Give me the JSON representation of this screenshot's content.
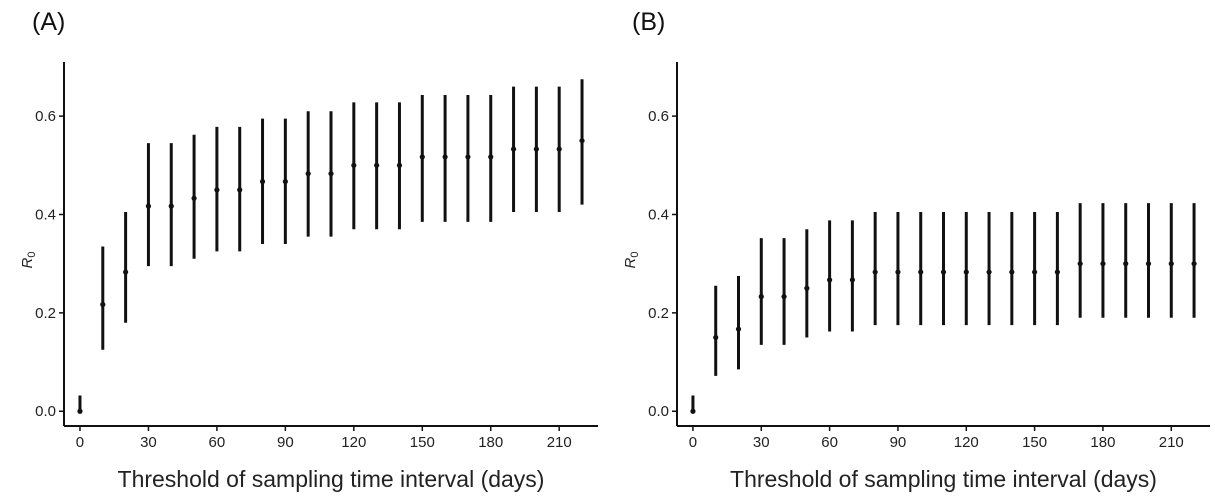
{
  "chart_data": [
    {
      "type": "scatter",
      "panel_label": "(A)",
      "xlabel": "Threshold of sampling time interval (days)",
      "ylabel": "R",
      "ylabel_sub": "0",
      "xlim": [
        -7,
        227
      ],
      "ylim": [
        -0.03,
        0.71
      ],
      "xticks": [
        0,
        30,
        60,
        90,
        120,
        150,
        180,
        210
      ],
      "xtick_labels": [
        "0",
        "30",
        "60",
        "90",
        "120",
        "150",
        "180",
        "210"
      ],
      "yticks": [
        0.0,
        0.2,
        0.4,
        0.6
      ],
      "ytick_labels": [
        "0.0",
        "0.2",
        "0.4",
        "0.6"
      ],
      "error_bars": true,
      "series": [
        {
          "x": [
            0,
            10,
            20,
            30,
            40,
            50,
            60,
            70,
            80,
            90,
            100,
            110,
            120,
            130,
            140,
            150,
            160,
            170,
            180,
            190,
            200,
            210,
            220
          ],
          "y": [
            0.0,
            0.217,
            0.283,
            0.417,
            0.417,
            0.433,
            0.45,
            0.45,
            0.467,
            0.467,
            0.483,
            0.483,
            0.5,
            0.5,
            0.5,
            0.517,
            0.517,
            0.517,
            0.517,
            0.533,
            0.533,
            0.533,
            0.55
          ],
          "lower": [
            0.0,
            0.125,
            0.18,
            0.295,
            0.295,
            0.31,
            0.325,
            0.325,
            0.34,
            0.34,
            0.355,
            0.355,
            0.37,
            0.37,
            0.37,
            0.385,
            0.385,
            0.385,
            0.385,
            0.405,
            0.405,
            0.405,
            0.42
          ],
          "upper": [
            0.032,
            0.335,
            0.405,
            0.545,
            0.545,
            0.562,
            0.578,
            0.578,
            0.595,
            0.595,
            0.61,
            0.61,
            0.628,
            0.628,
            0.628,
            0.643,
            0.643,
            0.643,
            0.643,
            0.66,
            0.66,
            0.66,
            0.675
          ]
        }
      ]
    },
    {
      "type": "scatter",
      "panel_label": "(B)",
      "xlabel": "Threshold of sampling time interval (days)",
      "ylabel": "R",
      "ylabel_sub": "0",
      "xlim": [
        -7,
        227
      ],
      "ylim": [
        -0.03,
        0.71
      ],
      "xticks": [
        0,
        30,
        60,
        90,
        120,
        150,
        180,
        210
      ],
      "xtick_labels": [
        "0",
        "30",
        "60",
        "90",
        "120",
        "150",
        "180",
        "210"
      ],
      "yticks": [
        0.0,
        0.2,
        0.4,
        0.6
      ],
      "ytick_labels": [
        "0.0",
        "0.2",
        "0.4",
        "0.6"
      ],
      "error_bars": true,
      "series": [
        {
          "x": [
            0,
            10,
            20,
            30,
            40,
            50,
            60,
            70,
            80,
            90,
            100,
            110,
            120,
            130,
            140,
            150,
            160,
            170,
            180,
            190,
            200,
            210,
            220
          ],
          "y": [
            0.0,
            0.15,
            0.167,
            0.233,
            0.233,
            0.25,
            0.267,
            0.267,
            0.283,
            0.283,
            0.283,
            0.283,
            0.283,
            0.283,
            0.283,
            0.283,
            0.283,
            0.3,
            0.3,
            0.3,
            0.3,
            0.3,
            0.3
          ],
          "lower": [
            0.0,
            0.072,
            0.085,
            0.135,
            0.135,
            0.15,
            0.162,
            0.162,
            0.175,
            0.175,
            0.175,
            0.175,
            0.175,
            0.175,
            0.175,
            0.175,
            0.175,
            0.19,
            0.19,
            0.19,
            0.19,
            0.19,
            0.19
          ],
          "upper": [
            0.032,
            0.255,
            0.275,
            0.352,
            0.352,
            0.37,
            0.388,
            0.388,
            0.405,
            0.405,
            0.405,
            0.405,
            0.405,
            0.405,
            0.405,
            0.405,
            0.405,
            0.423,
            0.423,
            0.423,
            0.423,
            0.423,
            0.423
          ]
        }
      ]
    }
  ]
}
